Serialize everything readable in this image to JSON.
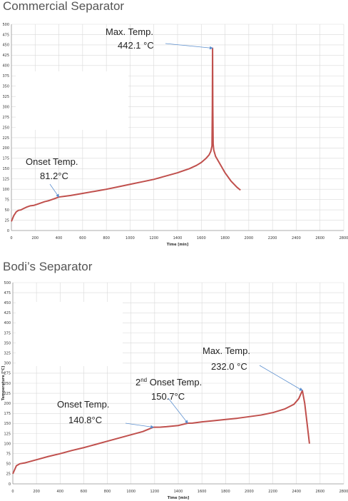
{
  "charts": [
    {
      "title": "Commercial Separator"
    },
    {
      "title": "Bodi’s Separator"
    }
  ],
  "chart_data": [
    {
      "type": "line",
      "title": "Commercial Separator",
      "xlabel": "Time [min]",
      "ylabel": "",
      "xlim": [
        0,
        2800
      ],
      "ylim": [
        0,
        500
      ],
      "xticks": [
        "0",
        "200",
        "400",
        "600",
        "800",
        "1000",
        "1200",
        "1400",
        "1600",
        "1800",
        "2000",
        "2200",
        "2400",
        "2600",
        "2800"
      ],
      "yticks": [
        "0",
        "25",
        "50",
        "75",
        "100",
        "125",
        "150",
        "175",
        "200",
        "225",
        "250",
        "275",
        "300",
        "325",
        "350",
        "375",
        "400",
        "425",
        "450",
        "475",
        "500"
      ],
      "grid": true,
      "series": [
        {
          "color": "#c0504d",
          "x": [
            0,
            20,
            40,
            60,
            80,
            100,
            130,
            160,
            190,
            220,
            250,
            280,
            310,
            340,
            370,
            400,
            450,
            500,
            600,
            700,
            800,
            900,
            1000,
            1100,
            1200,
            1300,
            1400,
            1500,
            1560,
            1600,
            1640,
            1665,
            1680,
            1690,
            1693,
            1695,
            1697,
            1700,
            1705,
            1720,
            1760,
            1800,
            1850,
            1900,
            1930
          ],
          "y": [
            22,
            36,
            45,
            49,
            50,
            53,
            57,
            60,
            61,
            64,
            67,
            70,
            72,
            75,
            78,
            81.2,
            83,
            85,
            90,
            95,
            100,
            106,
            112,
            118,
            124,
            132,
            140,
            150,
            158,
            165,
            175,
            183,
            192,
            205,
            300,
            442.1,
            300,
            210,
            195,
            180,
            160,
            140,
            120,
            105,
            98
          ]
        }
      ],
      "annotations": [
        {
          "label": "Max. Temp.",
          "value": "442.1 °C",
          "x": 1695,
          "y": 442.1
        },
        {
          "label": "Onset Temp.",
          "value": "81.2°C",
          "x": 400,
          "y": 81.2
        }
      ]
    },
    {
      "type": "line",
      "title": "Bodi’s Separator",
      "xlabel": "Time [min]",
      "ylabel": "Temperature [°C]",
      "xlim": [
        0,
        2800
      ],
      "ylim": [
        0,
        500
      ],
      "xticks": [
        "0",
        "200",
        "400",
        "600",
        "800",
        "1000",
        "1200",
        "1400",
        "1600",
        "1800",
        "2000",
        "2200",
        "2400",
        "2600",
        "2800"
      ],
      "yticks": [
        "0",
        "25",
        "50",
        "75",
        "100",
        "125",
        "150",
        "175",
        "200",
        "225",
        "250",
        "275",
        "300",
        "325",
        "350",
        "375",
        "400",
        "425",
        "450",
        "475",
        "500"
      ],
      "grid": true,
      "series": [
        {
          "color": "#c0504d",
          "x": [
            0,
            30,
            60,
            100,
            200,
            300,
            400,
            500,
            600,
            700,
            800,
            900,
            1000,
            1100,
            1190,
            1250,
            1300,
            1400,
            1480,
            1520,
            1600,
            1700,
            1800,
            1900,
            2000,
            2100,
            2200,
            2300,
            2380,
            2420,
            2450,
            2470,
            2490,
            2510
          ],
          "y": [
            25,
            45,
            50,
            52,
            60,
            68,
            75,
            83,
            90,
            98,
            106,
            114,
            122,
            130,
            140.8,
            141,
            142,
            145,
            150.7,
            151,
            154,
            157,
            160,
            163,
            167,
            171,
            177,
            186,
            198,
            212,
            232.0,
            200,
            150,
            100
          ]
        }
      ],
      "annotations": [
        {
          "label": "Max. Temp.",
          "value": "232.0 °C",
          "x": 2450,
          "y": 232.0
        },
        {
          "label": "2nd Onset Temp.",
          "label_main": "2",
          "label_sup": "nd",
          "label_rest": " Onset Temp.",
          "value": "150.7°C",
          "x": 1480,
          "y": 150.7
        },
        {
          "label": "Onset Temp.",
          "value": "140.8°C",
          "x": 1190,
          "y": 140.8
        }
      ]
    }
  ]
}
